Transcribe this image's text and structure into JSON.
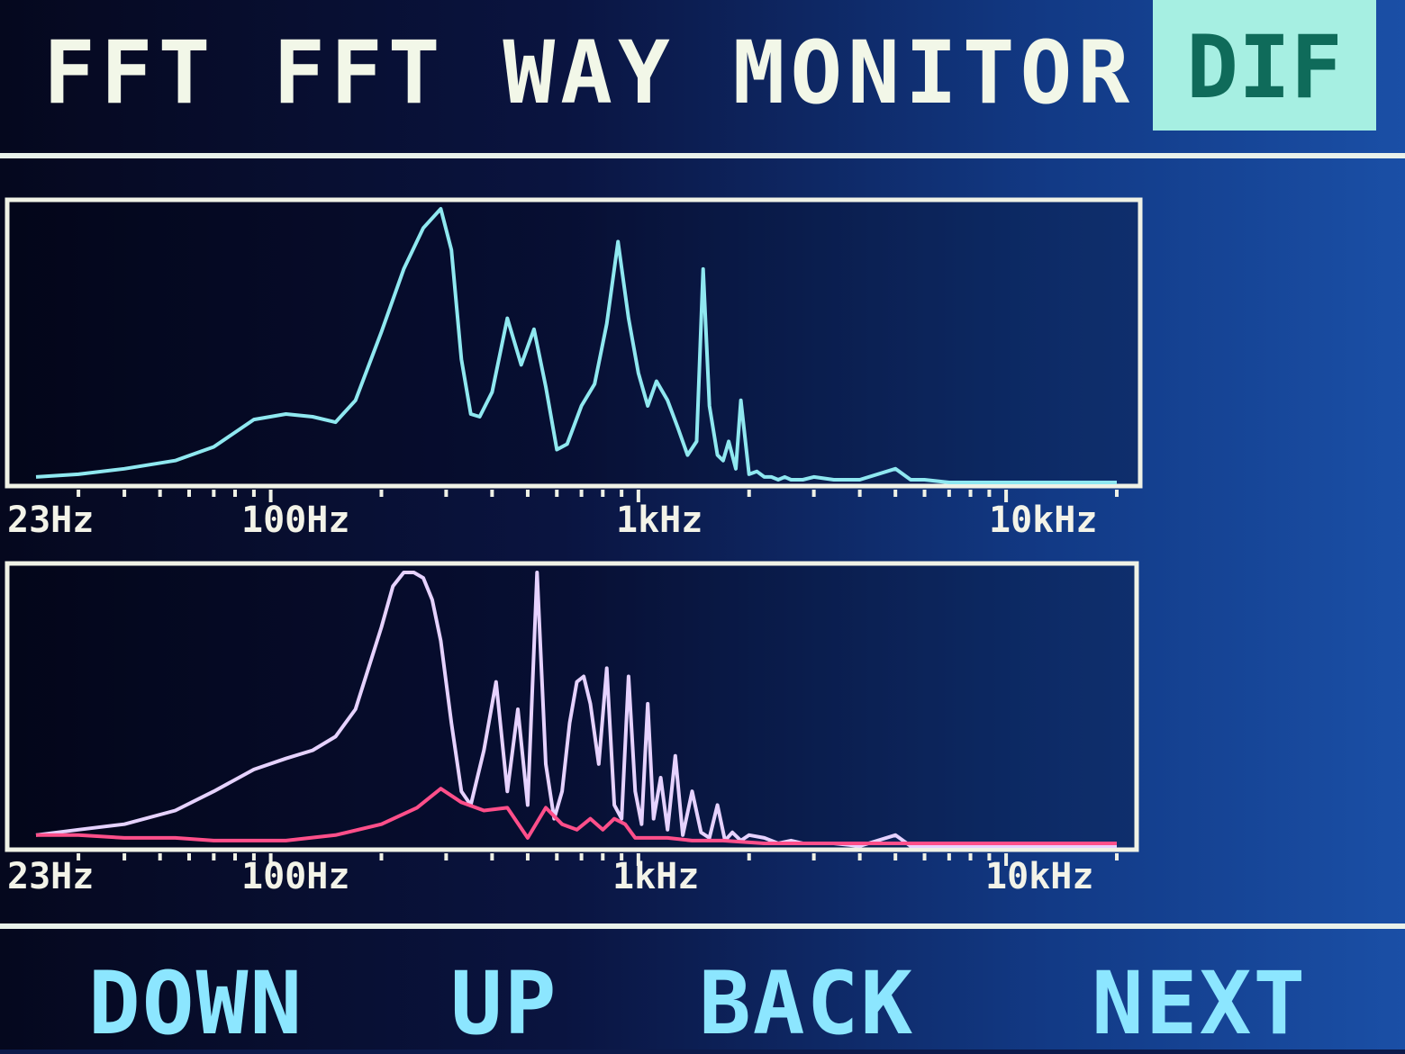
{
  "header": {
    "title": "FFT FFT WAY MONITOR",
    "mode": "DIF"
  },
  "colors": {
    "title_text": "#f2f7e8",
    "badge_bg": "#a6efe2",
    "badge_text": "#0f6b5a",
    "trace_top": "#8fe8f0",
    "trace_bottom_a": "#e6d2ff",
    "trace_bottom_b": "#ff4f8a",
    "softkey_text": "#8ce6ff"
  },
  "chart_data": [
    {
      "type": "line",
      "xscale": "log",
      "xlim": [
        23,
        20000
      ],
      "tick_labels": [
        "23Hz",
        "100Hz",
        "1kHz",
        "10kHz"
      ],
      "series": [
        {
          "x": [
            23,
            30,
            40,
            55,
            70,
            90,
            110,
            130,
            150,
            170,
            200,
            230,
            260,
            290,
            310,
            330,
            350,
            370,
            400,
            440,
            480,
            520,
            560,
            600,
            640,
            700,
            760,
            820,
            880,
            940,
            1000,
            1060,
            1120,
            1200,
            1280,
            1360,
            1440,
            1500,
            1560,
            1640,
            1700,
            1760,
            1840,
            1900,
            2000,
            2100,
            2200,
            2300,
            2400,
            2500,
            2600,
            2800,
            3000,
            3400,
            4000,
            5000,
            5500,
            6000,
            7000,
            10000,
            20000
          ],
          "values": [
            2,
            3,
            5,
            8,
            13,
            23,
            25,
            24,
            22,
            30,
            55,
            78,
            93,
            100,
            85,
            45,
            25,
            24,
            33,
            60,
            43,
            56,
            35,
            12,
            14,
            28,
            36,
            58,
            88,
            60,
            40,
            28,
            37,
            30,
            20,
            10,
            15,
            78,
            28,
            10,
            8,
            15,
            5,
            30,
            3,
            4,
            2,
            2,
            1,
            2,
            1,
            1,
            2,
            1,
            1,
            5,
            1,
            1,
            0,
            0,
            0
          ]
        }
      ]
    },
    {
      "type": "line",
      "xscale": "log",
      "xlim": [
        23,
        20000
      ],
      "tick_labels": [
        "23Hz",
        "100Hz",
        "1kHz",
        "10kHz"
      ],
      "series": [
        {
          "x": [
            23,
            30,
            40,
            55,
            70,
            90,
            110,
            130,
            150,
            170,
            200,
            215,
            230,
            245,
            260,
            275,
            290,
            310,
            330,
            350,
            380,
            410,
            440,
            470,
            500,
            530,
            560,
            590,
            620,
            650,
            680,
            710,
            740,
            780,
            820,
            860,
            900,
            940,
            980,
            1020,
            1060,
            1100,
            1150,
            1200,
            1260,
            1320,
            1400,
            1480,
            1560,
            1640,
            1720,
            1800,
            1900,
            2000,
            2200,
            2400,
            2600,
            2800,
            3000,
            3400,
            4000,
            5000,
            5500,
            6000,
            10000,
            20000
          ],
          "values": [
            4,
            6,
            8,
            13,
            20,
            28,
            32,
            35,
            40,
            50,
            80,
            95,
            100,
            100,
            98,
            90,
            75,
            45,
            20,
            15,
            35,
            60,
            20,
            50,
            15,
            100,
            30,
            10,
            20,
            45,
            60,
            62,
            52,
            30,
            65,
            15,
            10,
            62,
            20,
            8,
            52,
            10,
            25,
            6,
            33,
            4,
            20,
            5,
            3,
            15,
            2,
            5,
            2,
            4,
            3,
            1,
            2,
            1,
            1,
            1,
            0,
            4,
            0,
            0,
            0,
            0
          ]
        },
        {
          "x": [
            23,
            30,
            40,
            55,
            70,
            90,
            110,
            150,
            200,
            250,
            290,
            330,
            380,
            440,
            500,
            560,
            620,
            680,
            740,
            800,
            860,
            920,
            980,
            1040,
            1100,
            1200,
            1400,
            1700,
            2200,
            3000,
            5000,
            10000,
            20000
          ],
          "values": [
            4,
            4,
            3,
            3,
            2,
            2,
            2,
            4,
            8,
            14,
            21,
            16,
            13,
            14,
            3,
            14,
            8,
            6,
            10,
            6,
            10,
            8,
            3,
            3,
            3,
            3,
            2,
            2,
            1,
            1,
            1,
            1,
            1
          ]
        }
      ]
    }
  ],
  "softkeys": {
    "down": "DOWN",
    "up": "UP",
    "back": "BACK",
    "next": "NEXT"
  }
}
